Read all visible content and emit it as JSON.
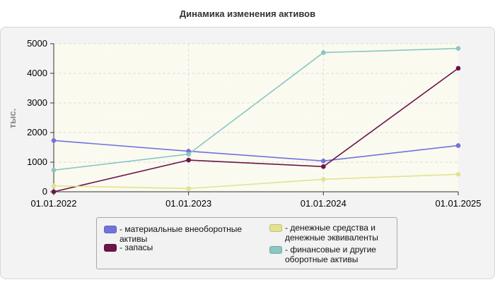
{
  "chart_data": {
    "type": "line",
    "title": "Динамика изменения активов",
    "ylabel": "тыс.",
    "xlabel": "",
    "categories": [
      "01.01.2022",
      "01.01.2023",
      "01.01.2024",
      "01.01.2025"
    ],
    "ylim": [
      0,
      5000
    ],
    "yticks": [
      0,
      1000,
      2000,
      3000,
      4000,
      5000
    ],
    "grid": true,
    "legend_position": "bottom",
    "series": [
      {
        "name": "материальные внеоборотные активы",
        "color": "#7272dc",
        "values": [
          1730,
          1370,
          1040,
          1560
        ]
      },
      {
        "name": "запасы",
        "color": "#6b1548",
        "values": [
          0,
          1070,
          850,
          4170
        ]
      },
      {
        "name": "денежные средства и денежные эквиваленты",
        "color": "#e3e28f",
        "values": [
          200,
          110,
          420,
          590
        ]
      },
      {
        "name": "финансовые и другие оборотные активы",
        "color": "#8ac6c2",
        "values": [
          730,
          1270,
          4700,
          4840
        ]
      }
    ]
  },
  "legend": {
    "items": [
      "- материальные внеоборотные активы",
      "- запасы",
      "- денежные средства и денежные эквиваленты",
      "- финансовые и другие оборотные активы"
    ]
  }
}
